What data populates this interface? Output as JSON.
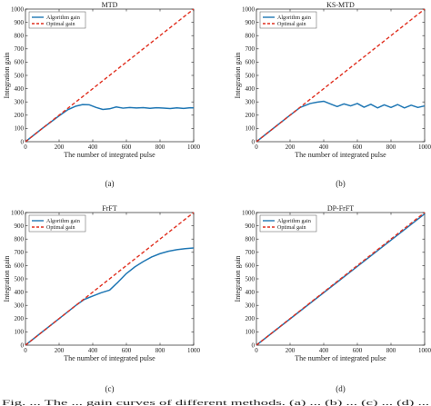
{
  "figure": {
    "caption_strip": "Fig. ...  The ... gain curves of different methods. (a) ... (b) ... (c) ... (d) ..."
  },
  "chart_data": [
    {
      "type": "line",
      "title": "MTD",
      "caption": "(a)",
      "xlabel": "The number of integrated pulse",
      "ylabel": "Integration gain",
      "xlim": [
        0,
        1000
      ],
      "ylim": [
        0,
        1000
      ],
      "xticks": [
        0,
        200,
        400,
        600,
        800,
        1000
      ],
      "yticks": [
        0,
        100,
        200,
        300,
        400,
        500,
        600,
        700,
        800,
        900,
        1000
      ],
      "grid": false,
      "legend": "top-left",
      "series": [
        {
          "name": "Algorithm gain",
          "color": "#1f77b4",
          "style": "solid",
          "x": [
            0,
            100,
            200,
            250,
            300,
            340,
            380,
            420,
            460,
            500,
            540,
            580,
            620,
            660,
            700,
            740,
            780,
            820,
            860,
            900,
            940,
            980,
            1000
          ],
          "y": [
            0,
            100,
            195,
            240,
            268,
            280,
            278,
            258,
            243,
            248,
            262,
            253,
            258,
            254,
            257,
            252,
            256,
            253,
            250,
            255,
            251,
            256,
            255
          ]
        },
        {
          "name": "Optimal gain",
          "color": "#e03020",
          "style": "dashed",
          "x": [
            0,
            1000
          ],
          "y": [
            0,
            1000
          ]
        }
      ]
    },
    {
      "type": "line",
      "title": "KS-MTD",
      "caption": "(b)",
      "xlabel": "The number of integrated pulse",
      "ylabel": "Integration gain",
      "xlim": [
        0,
        1000
      ],
      "ylim": [
        0,
        1000
      ],
      "xticks": [
        0,
        200,
        400,
        600,
        800,
        1000
      ],
      "yticks": [
        0,
        100,
        200,
        300,
        400,
        500,
        600,
        700,
        800,
        900,
        1000
      ],
      "grid": false,
      "legend": "top-left",
      "series": [
        {
          "name": "Algorithm gain",
          "color": "#1f77b4",
          "style": "solid",
          "x": [
            0,
            100,
            200,
            260,
            320,
            360,
            400,
            440,
            480,
            520,
            560,
            600,
            640,
            680,
            720,
            760,
            800,
            840,
            880,
            920,
            960,
            1000
          ],
          "y": [
            0,
            100,
            200,
            258,
            288,
            298,
            305,
            285,
            265,
            285,
            270,
            288,
            260,
            282,
            255,
            278,
            258,
            280,
            255,
            275,
            258,
            270
          ]
        },
        {
          "name": "Optimal gain",
          "color": "#e03020",
          "style": "dashed",
          "x": [
            0,
            1000
          ],
          "y": [
            0,
            1000
          ]
        }
      ]
    },
    {
      "type": "line",
      "title": "FrFT",
      "caption": "(c)",
      "xlabel": "The number of integrated pulse",
      "ylabel": "Integration gain",
      "xlim": [
        0,
        1000
      ],
      "ylim": [
        0,
        1000
      ],
      "xticks": [
        0,
        200,
        400,
        600,
        800,
        1000
      ],
      "yticks": [
        0,
        100,
        200,
        300,
        400,
        500,
        600,
        700,
        800,
        900,
        1000
      ],
      "grid": false,
      "legend": "top-left",
      "series": [
        {
          "name": "Algorithm gain",
          "color": "#1f77b4",
          "style": "solid",
          "x": [
            0,
            100,
            200,
            300,
            350,
            400,
            450,
            500,
            550,
            600,
            650,
            700,
            750,
            800,
            850,
            900,
            950,
            1000
          ],
          "y": [
            0,
            100,
            200,
            300,
            345,
            370,
            395,
            415,
            475,
            540,
            590,
            630,
            665,
            690,
            708,
            720,
            728,
            733
          ]
        },
        {
          "name": "Optimal gain",
          "color": "#e03020",
          "style": "dashed",
          "x": [
            0,
            1000
          ],
          "y": [
            0,
            1000
          ]
        }
      ]
    },
    {
      "type": "line",
      "title": "DP-FrFT",
      "caption": "(d)",
      "xlabel": "The number of integrated pulse",
      "ylabel": "Integration gain",
      "xlim": [
        0,
        1000
      ],
      "ylim": [
        0,
        1000
      ],
      "xticks": [
        0,
        200,
        400,
        600,
        800,
        1000
      ],
      "yticks": [
        0,
        100,
        200,
        300,
        400,
        500,
        600,
        700,
        800,
        900,
        1000
      ],
      "grid": false,
      "legend": "top-left",
      "series": [
        {
          "name": "Algorithm gain",
          "color": "#1f77b4",
          "style": "solid",
          "x": [
            0,
            1000
          ],
          "y": [
            0,
            990
          ]
        },
        {
          "name": "Optimal gain",
          "color": "#e03020",
          "style": "dashed",
          "x": [
            0,
            1000
          ],
          "y": [
            0,
            1000
          ]
        }
      ]
    }
  ]
}
